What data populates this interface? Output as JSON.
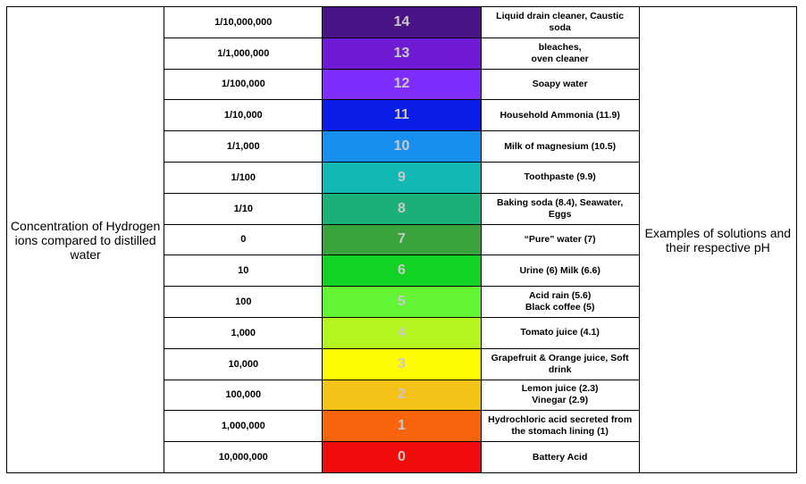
{
  "left_label": "Concentration of Hydrogen ions compared to distilled water",
  "right_label": "Examples of solutions and their respective pH",
  "rows": [
    {
      "concentration": "1/10,000,000",
      "ph": "14",
      "color": "#4a1486",
      "text_color": "#c9c9c9",
      "example": [
        "Liquid drain cleaner, Caustic",
        "soda"
      ]
    },
    {
      "concentration": "1/1,000,000",
      "ph": "13",
      "color": "#6f1bd3",
      "text_color": "#c9c9c9",
      "example": [
        "bleaches,",
        "oven cleaner"
      ]
    },
    {
      "concentration": "1/100,000",
      "ph": "12",
      "color": "#7f2cff",
      "text_color": "#c9c9c9",
      "example": [
        "Soapy water"
      ]
    },
    {
      "concentration": "1/10,000",
      "ph": "11",
      "color": "#0a1de8",
      "text_color": "#c9c9c9",
      "example": [
        "Household Ammonia (11.9)"
      ]
    },
    {
      "concentration": "1/1,000",
      "ph": "10",
      "color": "#178ff0",
      "text_color": "#c9c9c9",
      "example": [
        "Milk of magnesium (10.5)"
      ]
    },
    {
      "concentration": "1/100",
      "ph": "9",
      "color": "#12b8b4",
      "text_color": "#c9c9c9",
      "example": [
        "Toothpaste (9.9)"
      ]
    },
    {
      "concentration": "1/10",
      "ph": "8",
      "color": "#1bb077",
      "text_color": "#c9c9c9",
      "example": [
        "Baking soda (8.4), Seawater,",
        "Eggs"
      ]
    },
    {
      "concentration": "0",
      "ph": "7",
      "color": "#3aa33c",
      "text_color": "#c9c9c9",
      "example": [
        "“Pure” water (7)"
      ]
    },
    {
      "concentration": "10",
      "ph": "6",
      "color": "#12d324",
      "text_color": "#c9c9c9",
      "example": [
        "Urine (6) Milk (6.6)"
      ]
    },
    {
      "concentration": "100",
      "ph": "5",
      "color": "#63f534",
      "text_color": "#c9c9c9",
      "example": [
        "Acid rain (5.6)",
        "Black coffee (5)"
      ]
    },
    {
      "concentration": "1,000",
      "ph": "4",
      "color": "#b5f51f",
      "text_color": "#c9c9c9",
      "example": [
        "Tomato juice (4.1)"
      ]
    },
    {
      "concentration": "10,000",
      "ph": "3",
      "color": "#fefa00",
      "text_color": "#c9c9c9",
      "example": [
        "Grapefruit & Orange juice, Soft",
        "drink"
      ]
    },
    {
      "concentration": "100,000",
      "ph": "2",
      "color": "#f5c218",
      "text_color": "#c9c9c9",
      "example": [
        "Lemon juice (2.3)",
        "Vinegar (2.9)"
      ]
    },
    {
      "concentration": "1,000,000",
      "ph": "1",
      "color": "#f7640b",
      "text_color": "#c9c9c9",
      "example": [
        "Hydrochloric acid secreted from",
        "the stomach lining (1)"
      ]
    },
    {
      "concentration": "10,000,000",
      "ph": "0",
      "color": "#f20d0d",
      "text_color": "#c9c9c9",
      "example": [
        "Battery Acid"
      ]
    }
  ]
}
